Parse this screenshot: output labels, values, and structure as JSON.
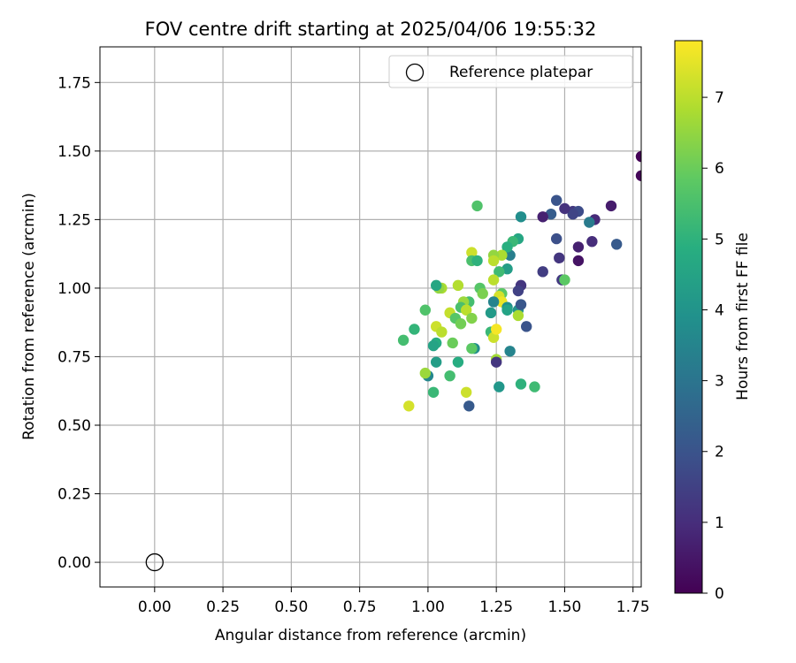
{
  "chart_data": {
    "type": "scatter",
    "title": "FOV centre drift starting at 2025/04/06 19:55:32",
    "xlabel": "Angular distance from reference (arcmin)",
    "ylabel": "Rotation from reference (arcmin)",
    "xlim": [
      -0.2,
      1.78
    ],
    "ylim": [
      -0.09,
      1.88
    ],
    "xticks": [
      "0.00",
      "0.25",
      "0.50",
      "0.75",
      "1.00",
      "1.25",
      "1.50",
      "1.75"
    ],
    "xtick_values": [
      0,
      0.25,
      0.5,
      0.75,
      1.0,
      1.25,
      1.5,
      1.75
    ],
    "yticks": [
      "0.00",
      "0.25",
      "0.50",
      "0.75",
      "1.00",
      "1.25",
      "1.50",
      "1.75"
    ],
    "ytick_values": [
      0,
      0.25,
      0.5,
      0.75,
      1.0,
      1.25,
      1.5,
      1.75
    ],
    "grid": true,
    "legend_position": "top-right",
    "legend_label": "Reference platepar",
    "reference_point": {
      "x": 0.0,
      "y": 0.0
    },
    "colorbar": {
      "label": "Hours from first FF file",
      "colormap": "viridis",
      "range": [
        0,
        7.8
      ],
      "ticks": [
        "0",
        "1",
        "2",
        "3",
        "4",
        "5",
        "6",
        "7"
      ],
      "tick_values": [
        0,
        1,
        2,
        3,
        4,
        5,
        6,
        7
      ]
    },
    "points": [
      [
        1.78,
        1.48,
        0.05
      ],
      [
        1.78,
        1.41,
        0.1
      ],
      [
        1.67,
        1.3,
        0.6
      ],
      [
        1.61,
        1.25,
        0.9
      ],
      [
        1.55,
        1.1,
        0.4
      ],
      [
        1.55,
        1.15,
        0.7
      ],
      [
        1.6,
        1.17,
        1.0
      ],
      [
        1.69,
        1.16,
        2.2
      ],
      [
        1.53,
        1.28,
        1.3
      ],
      [
        1.55,
        1.28,
        1.8
      ],
      [
        1.53,
        1.27,
        1.6
      ],
      [
        1.5,
        1.29,
        1.1
      ],
      [
        1.47,
        1.32,
        2.0
      ],
      [
        1.45,
        1.27,
        2.3
      ],
      [
        1.42,
        1.26,
        0.7
      ],
      [
        1.59,
        1.24,
        3.2
      ],
      [
        1.47,
        1.18,
        1.9
      ],
      [
        1.48,
        1.11,
        1.2
      ],
      [
        1.42,
        1.06,
        1.4
      ],
      [
        1.49,
        1.03,
        1.3
      ],
      [
        1.5,
        1.03,
        5.8
      ],
      [
        1.34,
        1.26,
        3.8
      ],
      [
        1.33,
        1.18,
        4.6
      ],
      [
        1.31,
        1.17,
        5.2
      ],
      [
        1.3,
        1.12,
        3.3
      ],
      [
        1.29,
        1.15,
        4.9
      ],
      [
        1.29,
        1.07,
        4.3
      ],
      [
        1.26,
        1.06,
        5.3
      ],
      [
        1.27,
        1.12,
        6.8
      ],
      [
        1.24,
        1.12,
        6.5
      ],
      [
        1.24,
        1.1,
        7.0
      ],
      [
        1.18,
        1.3,
        5.6
      ],
      [
        1.16,
        1.13,
        7.2
      ],
      [
        1.16,
        1.1,
        5.5
      ],
      [
        1.18,
        1.1,
        5.0
      ],
      [
        1.34,
        1.01,
        1.2
      ],
      [
        1.33,
        0.99,
        1.5
      ],
      [
        1.27,
        0.98,
        5.8
      ],
      [
        1.26,
        0.97,
        7.3
      ],
      [
        1.27,
        0.95,
        7.6
      ],
      [
        1.24,
        0.95,
        3.5
      ],
      [
        1.29,
        0.93,
        3.9
      ],
      [
        1.29,
        0.92,
        4.5
      ],
      [
        1.33,
        0.92,
        4.0
      ],
      [
        1.34,
        0.94,
        2.1
      ],
      [
        1.33,
        0.9,
        6.8
      ],
      [
        1.23,
        0.91,
        4.2
      ],
      [
        1.24,
        1.03,
        7.0
      ],
      [
        1.19,
        1.0,
        5.7
      ],
      [
        1.2,
        0.98,
        6.2
      ],
      [
        1.15,
        0.95,
        5.4
      ],
      [
        1.13,
        0.95,
        6.6
      ],
      [
        1.12,
        0.93,
        5.5
      ],
      [
        1.14,
        0.92,
        7.0
      ],
      [
        1.11,
        1.01,
        6.9
      ],
      [
        1.05,
        1.0,
        6.8
      ],
      [
        1.04,
        1.0,
        6.5
      ],
      [
        1.03,
        1.01,
        4.6
      ],
      [
        1.08,
        0.91,
        7.1
      ],
      [
        1.1,
        0.89,
        5.7
      ],
      [
        1.16,
        0.89,
        6.3
      ],
      [
        1.12,
        0.87,
        6.1
      ],
      [
        1.03,
        0.86,
        7.2
      ],
      [
        1.05,
        0.84,
        7.0
      ],
      [
        1.03,
        0.8,
        4.8
      ],
      [
        1.02,
        0.79,
        4.5
      ],
      [
        1.09,
        0.8,
        6.0
      ],
      [
        0.99,
        0.92,
        5.6
      ],
      [
        0.95,
        0.85,
        5.1
      ],
      [
        0.91,
        0.81,
        5.4
      ],
      [
        1.23,
        0.84,
        5.2
      ],
      [
        1.24,
        0.82,
        7.2
      ],
      [
        1.25,
        0.85,
        7.7
      ],
      [
        1.36,
        0.86,
        2.0
      ],
      [
        1.17,
        0.78,
        3.8
      ],
      [
        1.16,
        0.78,
        5.8
      ],
      [
        1.3,
        0.77,
        3.5
      ],
      [
        1.25,
        0.74,
        6.7
      ],
      [
        1.25,
        0.73,
        1.2
      ],
      [
        1.11,
        0.73,
        4.8
      ],
      [
        1.03,
        0.73,
        4.3
      ],
      [
        1.08,
        0.68,
        5.4
      ],
      [
        1.0,
        0.68,
        3.6
      ],
      [
        0.99,
        0.69,
        6.6
      ],
      [
        1.26,
        0.64,
        4.1
      ],
      [
        1.34,
        0.65,
        5.0
      ],
      [
        1.39,
        0.64,
        5.3
      ],
      [
        1.14,
        0.62,
        7.2
      ],
      [
        1.02,
        0.62,
        5.2
      ],
      [
        0.93,
        0.57,
        7.3
      ],
      [
        1.15,
        0.57,
        2.2
      ]
    ]
  }
}
